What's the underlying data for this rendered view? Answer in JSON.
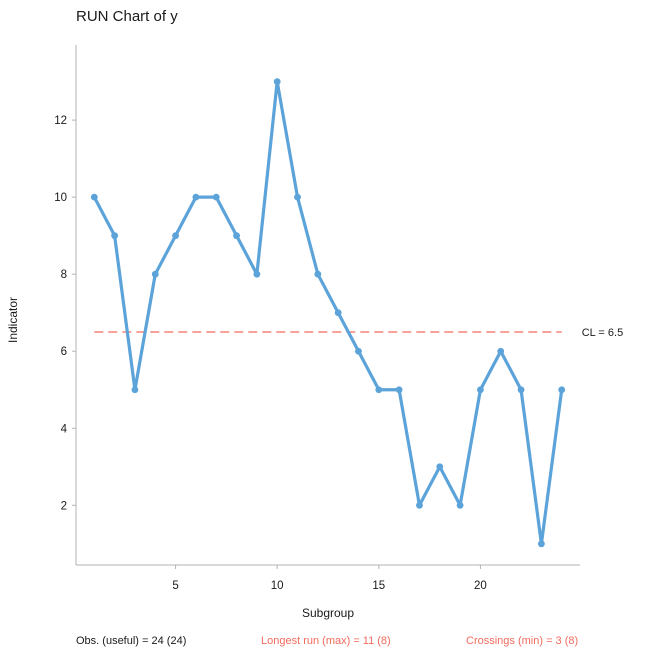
{
  "chart_data": {
    "type": "line",
    "title": "RUN Chart of y",
    "xlabel": "Subgroup",
    "ylabel": "Indicator",
    "x": [
      1,
      2,
      3,
      4,
      5,
      6,
      7,
      8,
      9,
      10,
      11,
      12,
      13,
      14,
      15,
      16,
      17,
      18,
      19,
      20,
      21,
      22,
      23,
      24
    ],
    "series": [
      {
        "name": "y",
        "values": [
          10,
          9,
          5,
          8,
          9,
          10,
          10,
          9,
          8,
          13,
          10,
          8,
          7,
          6,
          5,
          5,
          2,
          3,
          2,
          5,
          6,
          5,
          1,
          5
        ]
      }
    ],
    "xlim": [
      0.1,
      24.9
    ],
    "ylim": [
      0.45,
      13.95
    ],
    "x_ticks": [
      5,
      10,
      15,
      20
    ],
    "y_ticks": [
      2,
      4,
      6,
      8,
      10,
      12
    ],
    "center_line": {
      "value": 6.5,
      "label": "CL = 6.5"
    },
    "grid": false,
    "footer": {
      "obs": "Obs. (useful) = 24 (24)",
      "longest_run": "Longest run (max) = 11 (8)",
      "crossings": "Crossings (min) = 3 (8)"
    },
    "colors": {
      "series": "#5BA3D9",
      "center_line": "#F26B5E",
      "signal_text": "#F26B5E",
      "axis": "#b3b3b3"
    }
  }
}
